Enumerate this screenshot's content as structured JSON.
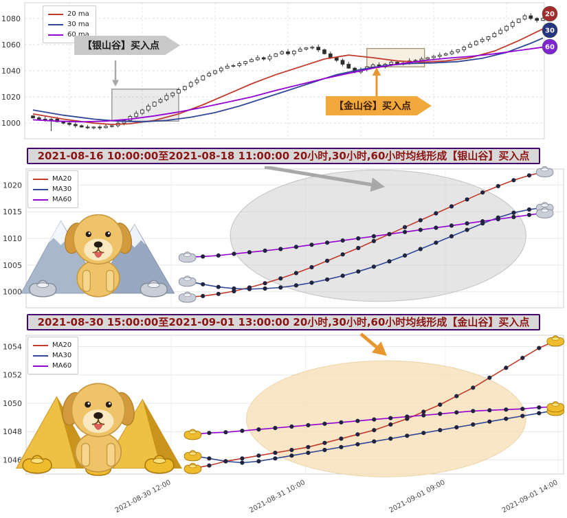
{
  "titles": {
    "silver": "2021-08-16 10:00:00至2021-08-18 11:00:00 20小时,30小时,60小时均线形成【银山谷】买入点",
    "gold": "2021-08-30 15:00:00至2021-09-01 13:00:00 20小时,30小时,60小时均线形成【金山谷】买入点"
  },
  "colors": {
    "ma20": "#c0392b",
    "ma30": "#2f4699",
    "ma60": "#9400d3",
    "dot": "#20243f",
    "silver_arrow": "#a8a8a8",
    "gold_arrow": "#e8962e",
    "badge20": "#a02c2c",
    "badge30": "#26357f",
    "badge60": "#7d26cd"
  },
  "chart_data": [
    {
      "id": "main",
      "type": "candlestick",
      "ylim": [
        988,
        1092
      ],
      "yticks": [
        1000,
        1020,
        1040,
        1060,
        1080
      ],
      "legend": [
        {
          "label": "20 ma",
          "color": "#c0392b"
        },
        {
          "label": "30 ma",
          "color": "#2f4699"
        },
        {
          "label": "60 ma",
          "color": "#9400d3"
        }
      ],
      "badges": [
        {
          "label": "20",
          "color": "#a02c2c"
        },
        {
          "label": "30",
          "color": "#26357f"
        },
        {
          "label": "60",
          "color": "#7d26cd"
        }
      ],
      "closes": [
        1004,
        1003,
        1002.5,
        1003,
        1001,
        1000,
        999,
        998,
        997,
        996.5,
        997,
        996.5,
        997.5,
        998,
        1000,
        1002,
        1005,
        1007.5,
        1010,
        1013,
        1016,
        1018,
        1021,
        1023,
        1025.5,
        1028,
        1031,
        1033,
        1036,
        1038,
        1040,
        1042,
        1043.5,
        1044,
        1045.5,
        1047,
        1048.5,
        1050,
        1049,
        1051,
        1053,
        1054.5,
        1053,
        1055,
        1056.5,
        1057.5,
        1058,
        1056,
        1053,
        1050,
        1048,
        1045,
        1042,
        1039,
        1041,
        1043,
        1044.5,
        1043,
        1045,
        1046.5,
        1045,
        1046,
        1047.5,
        1048,
        1049,
        1050,
        1051,
        1052,
        1053,
        1054.5,
        1056,
        1058,
        1060,
        1062.5,
        1064,
        1066,
        1068.5,
        1071,
        1074,
        1077,
        1079.5,
        1082,
        1080,
        1078.5,
        1080
      ],
      "series": [
        {
          "name": "20 ma",
          "color": "#c0392b",
          "knots": [
            [
              0,
              1007
            ],
            [
              5,
              1003
            ],
            [
              10,
              1000
            ],
            [
              13,
              999
            ],
            [
              16,
              999.5
            ],
            [
              20,
              1002
            ],
            [
              24,
              1007
            ],
            [
              28,
              1014
            ],
            [
              32,
              1022
            ],
            [
              36,
              1030
            ],
            [
              40,
              1037
            ],
            [
              44,
              1043
            ],
            [
              48,
              1049
            ],
            [
              52,
              1052
            ],
            [
              56,
              1050
            ],
            [
              60,
              1047.5
            ],
            [
              64,
              1046.5
            ],
            [
              68,
              1047.5
            ],
            [
              72,
              1050
            ],
            [
              76,
              1055
            ],
            [
              80,
              1063
            ],
            [
              84,
              1072
            ]
          ]
        },
        {
          "name": "30 ma",
          "color": "#2f4699",
          "knots": [
            [
              0,
              1010
            ],
            [
              5,
              1006
            ],
            [
              10,
              1003
            ],
            [
              14,
              1001.5
            ],
            [
              18,
              1001
            ],
            [
              22,
              1002
            ],
            [
              26,
              1004.5
            ],
            [
              30,
              1008
            ],
            [
              34,
              1013
            ],
            [
              38,
              1019
            ],
            [
              42,
              1025
            ],
            [
              46,
              1031
            ],
            [
              50,
              1037
            ],
            [
              54,
              1041
            ],
            [
              58,
              1044
            ],
            [
              62,
              1045.5
            ],
            [
              66,
              1046
            ],
            [
              70,
              1047
            ],
            [
              74,
              1049.5
            ],
            [
              78,
              1054
            ],
            [
              82,
              1061
            ],
            [
              84,
              1065
            ]
          ]
        },
        {
          "name": "60 ma",
          "color": "#9400d3",
          "knots": [
            [
              0,
              1002.5
            ],
            [
              4,
              1001.5
            ],
            [
              8,
              1001
            ],
            [
              12,
              1001.5
            ],
            [
              16,
              1003
            ],
            [
              20,
              1005.5
            ],
            [
              24,
              1008.5
            ],
            [
              28,
              1012
            ],
            [
              32,
              1016
            ],
            [
              36,
              1020
            ],
            [
              40,
              1025
            ],
            [
              44,
              1029.5
            ],
            [
              48,
              1034
            ],
            [
              52,
              1038
            ],
            [
              56,
              1042
            ],
            [
              60,
              1045
            ],
            [
              64,
              1047.5
            ],
            [
              68,
              1049.5
            ],
            [
              72,
              1051
            ],
            [
              76,
              1053
            ],
            [
              80,
              1055.5
            ],
            [
              84,
              1058
            ]
          ]
        }
      ],
      "boxes": [
        {
          "i0": 13,
          "i1": 24,
          "v0": 1001.5,
          "v1": 1026,
          "stroke": "#8f8f8f",
          "fill": "rgba(160,160,160,0.22)"
        },
        {
          "i0": 55,
          "i1": 64.5,
          "v0": 1043,
          "v1": 1057,
          "stroke": "#9f8f70",
          "fill": "rgba(222,196,150,0.28)"
        }
      ],
      "annotations": [
        {
          "text": "【银山谷】买入点"
        },
        {
          "text": "【金山谷】买入点"
        }
      ]
    },
    {
      "id": "silver",
      "type": "line",
      "ylim": [
        997,
        1023
      ],
      "yticks": [
        1000,
        1005,
        1010,
        1015,
        1020
      ],
      "x_start": 0.3,
      "x_end": 0.965,
      "legend": [
        {
          "label": "MA20",
          "color": "#c0392b"
        },
        {
          "label": "MA30",
          "color": "#2f4699"
        },
        {
          "label": "MA60",
          "color": "#9400d3"
        }
      ],
      "series": [
        {
          "name": "MA20",
          "color": "#c0392b",
          "values": [
            999,
            999.2,
            999.6,
            1000.1,
            1000.8,
            1001.6,
            1002.5,
            1003.5,
            1004.6,
            1005.8,
            1007,
            1008.2,
            1009.5,
            1010.8,
            1012.1,
            1013.4,
            1014.7,
            1016,
            1017.3,
            1018.6,
            1019.8,
            1020.9,
            1021.8,
            1022.5
          ]
        },
        {
          "name": "MA30",
          "color": "#2f4699",
          "values": [
            1002,
            1001.4,
            1000.9,
            1000.6,
            1000.5,
            1000.6,
            1000.8,
            1001.2,
            1001.7,
            1002.3,
            1003,
            1003.8,
            1004.7,
            1005.7,
            1006.8,
            1008,
            1009.2,
            1010.4,
            1011.6,
            1012.8,
            1013.9,
            1014.8,
            1015.4,
            1015.8
          ]
        },
        {
          "name": "MA60",
          "color": "#9400d3",
          "values": [
            1006.5,
            1006.6,
            1006.8,
            1007.1,
            1007.4,
            1007.7,
            1008,
            1008.4,
            1008.8,
            1009.2,
            1009.6,
            1010,
            1010.4,
            1010.8,
            1011.2,
            1011.6,
            1012,
            1012.4,
            1012.8,
            1013.2,
            1013.6,
            1014,
            1014.4,
            1014.8
          ]
        }
      ],
      "ellipse": {
        "cx_f": 0.655,
        "cy_v": 1010.5,
        "rx_f": 0.275,
        "ry_v": 12.3,
        "fill": "rgba(203,203,203,0.5)",
        "stroke": "#c2c2c2"
      },
      "marker": "silver",
      "xticks": []
    },
    {
      "id": "gold",
      "type": "line",
      "ylim": [
        1045,
        1054.8
      ],
      "yticks": [
        1046,
        1048,
        1050,
        1052,
        1054
      ],
      "x_start": 0.31,
      "x_end": 0.985,
      "legend": [
        {
          "label": "MA20",
          "color": "#c0392b"
        },
        {
          "label": "MA30",
          "color": "#2f4699"
        },
        {
          "label": "MA60",
          "color": "#9400d3"
        }
      ],
      "series": [
        {
          "name": "MA20",
          "color": "#c0392b",
          "values": [
            1045.4,
            1045.6,
            1045.9,
            1046.1,
            1046.3,
            1046.5,
            1046.7,
            1046.9,
            1047.2,
            1047.5,
            1047.8,
            1048.1,
            1048.5,
            1048.9,
            1049.4,
            1049.9,
            1050.5,
            1051.1,
            1051.8,
            1052.5,
            1053.2,
            1053.9,
            1054.4
          ]
        },
        {
          "name": "MA30",
          "color": "#2f4699",
          "values": [
            1046.3,
            1046.1,
            1045.9,
            1045.8,
            1045.9,
            1046.1,
            1046.3,
            1046.5,
            1046.7,
            1046.9,
            1047.1,
            1047.3,
            1047.5,
            1047.7,
            1047.9,
            1048.1,
            1048.3,
            1048.5,
            1048.7,
            1048.9,
            1049.1,
            1049.3,
            1049.5
          ]
        },
        {
          "name": "MA60",
          "color": "#9400d3",
          "values": [
            1047.8,
            1047.9,
            1047.95,
            1048.05,
            1048.15,
            1048.25,
            1048.35,
            1048.45,
            1048.55,
            1048.65,
            1048.75,
            1048.85,
            1048.95,
            1049.05,
            1049.15,
            1049.25,
            1049.35,
            1049.45,
            1049.5,
            1049.55,
            1049.6,
            1049.7,
            1049.75
          ]
        }
      ],
      "ellipse": {
        "cx_f": 0.67,
        "cy_v": 1048.9,
        "rx_f": 0.26,
        "ry_v": 4.1,
        "fill": "rgba(247,224,184,0.8)",
        "stroke": "#ecd4a8"
      },
      "marker": "gold",
      "xticks": [
        {
          "f": 0.27,
          "label": "2021-08-30 12:00"
        },
        {
          "f": 0.52,
          "label": "2021-08-31 10:00"
        },
        {
          "f": 0.78,
          "label": "2021-09-01 09:00"
        },
        {
          "f": 0.99,
          "label": "2021-09-01 14:00"
        }
      ]
    }
  ]
}
